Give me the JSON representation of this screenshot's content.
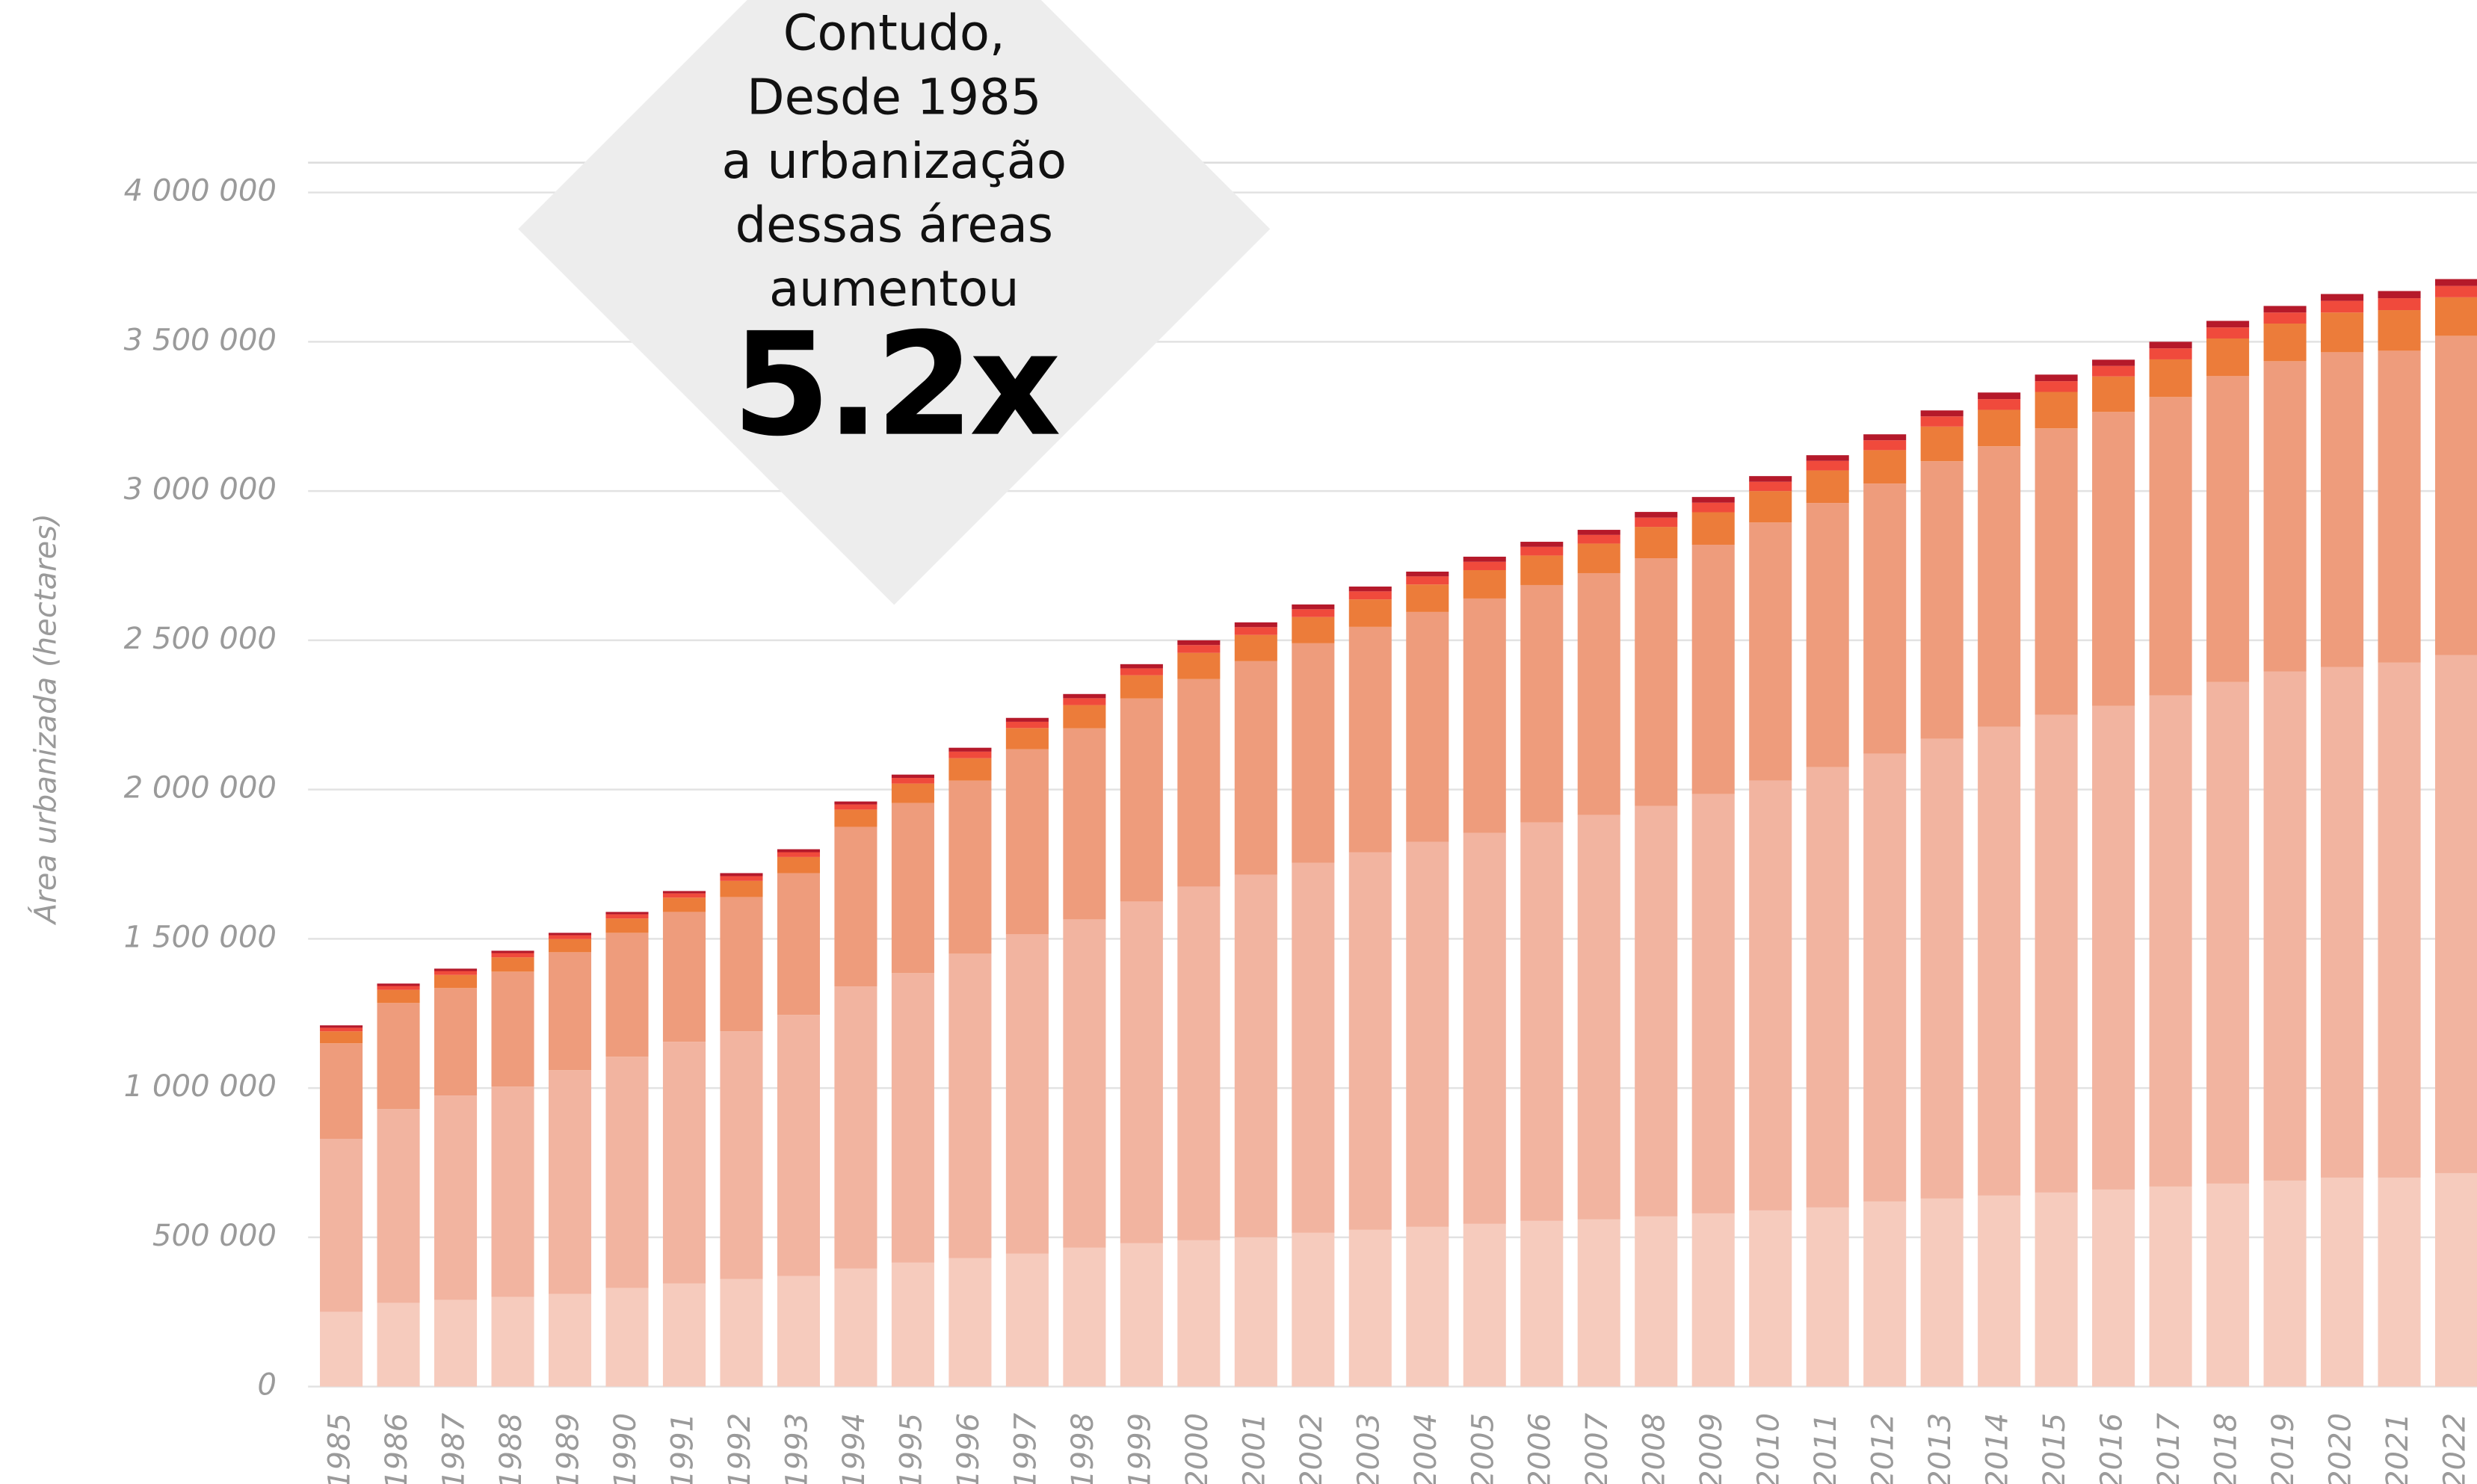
{
  "chart_data": {
    "type": "stacked_bar",
    "annotation_lines": [
      "Contudo,",
      "Desde 1985",
      "a urbanização",
      "dessas áreas",
      "aumentou"
    ],
    "annotation_value": "5.2x",
    "ylabel": "Área urbanizada (hectares)",
    "categories": [
      "1985",
      "1986",
      "1987",
      "1988",
      "1989",
      "1990",
      "1991",
      "1992",
      "1993",
      "1994",
      "1995",
      "1996",
      "1997",
      "1998",
      "1999",
      "2000",
      "2001",
      "2002",
      "2003",
      "2004",
      "2005",
      "2006",
      "2007",
      "2008",
      "2009",
      "2010",
      "2011",
      "2012",
      "2013",
      "2014",
      "2015",
      "2016",
      "2017",
      "2018",
      "2019",
      "2020",
      "2021",
      "2022"
    ],
    "series": [
      {
        "color": "#f6cbbd",
        "values": [
          250000,
          280000,
          290000,
          300000,
          310000,
          330000,
          345000,
          360000,
          370000,
          395000,
          415000,
          430000,
          445000,
          465000,
          480000,
          490000,
          500000,
          515000,
          525000,
          535000,
          545000,
          555000,
          560000,
          570000,
          580000,
          590000,
          600000,
          620000,
          630000,
          640000,
          650000,
          660000,
          670000,
          680000,
          690000,
          700000,
          700000,
          715000
        ]
      },
      {
        "color": "#f2b4a0",
        "values": [
          580000,
          650000,
          685000,
          705000,
          750000,
          775000,
          810000,
          830000,
          875000,
          945000,
          970000,
          1020000,
          1070000,
          1100000,
          1145000,
          1185000,
          1215000,
          1240000,
          1265000,
          1290000,
          1310000,
          1335000,
          1355000,
          1375000,
          1405000,
          1440000,
          1475000,
          1500000,
          1540000,
          1570000,
          1600000,
          1620000,
          1645000,
          1680000,
          1705000,
          1710000,
          1725000,
          1735000
        ]
      },
      {
        "color": "#ee9c7c",
        "values": [
          320000,
          355000,
          360000,
          385000,
          395000,
          415000,
          435000,
          450000,
          475000,
          535000,
          570000,
          580000,
          620000,
          640000,
          680000,
          695000,
          715000,
          735000,
          755000,
          770000,
          785000,
          795000,
          810000,
          830000,
          835000,
          865000,
          885000,
          905000,
          930000,
          940000,
          960000,
          985000,
          1000000,
          1025000,
          1040000,
          1055000,
          1045000,
          1070000
        ]
      },
      {
        "color": "#ec7c3a",
        "values": [
          40000,
          44000,
          44000,
          48000,
          44000,
          48000,
          48000,
          54000,
          54000,
          58000,
          65000,
          75000,
          71000,
          78000,
          78000,
          88000,
          88000,
          88000,
          92000,
          92000,
          95000,
          99000,
          99000,
          105000,
          109000,
          105000,
          109000,
          112000,
          116000,
          122000,
          122000,
          119000,
          126000,
          126000,
          126000,
          133000,
          136000,
          129000
        ]
      },
      {
        "color": "#f04a3c",
        "values": [
          12000,
          13000,
          13000,
          14000,
          13000,
          14000,
          14000,
          16000,
          16000,
          17000,
          19000,
          22000,
          21000,
          23000,
          23000,
          26000,
          26000,
          26000,
          27000,
          27000,
          28000,
          29000,
          29000,
          31000,
          32000,
          31000,
          32000,
          33000,
          34000,
          36000,
          36000,
          35000,
          37000,
          37000,
          37000,
          39000,
          40000,
          38000
        ]
      },
      {
        "color": "#b5192a",
        "values": [
          8000,
          8000,
          8000,
          8000,
          8000,
          8000,
          8000,
          10000,
          10000,
          10000,
          11000,
          13000,
          13000,
          14000,
          14000,
          16000,
          16000,
          16000,
          16000,
          16000,
          17000,
          17000,
          17000,
          19000,
          19000,
          19000,
          19000,
          20000,
          20000,
          22000,
          22000,
          21000,
          22000,
          22000,
          22000,
          23000,
          24000,
          23000
        ]
      }
    ],
    "ylim": [
      0,
      4100000
    ],
    "yticks": [
      0,
      {
        "value": 500000,
        "label": "500 000"
      },
      {
        "value": 1000000,
        "label": "1 000 000"
      },
      {
        "value": 1500000,
        "label": "1 500 000"
      },
      {
        "value": 2000000,
        "label": "2 000 000"
      },
      {
        "value": 2500000,
        "label": "2 500 000"
      },
      {
        "value": 3000000,
        "label": "3 000 000"
      },
      {
        "value": 3500000,
        "label": "3 500 000"
      },
      {
        "value": 4000000,
        "label": "4 000 000"
      }
    ],
    "grid": true
  }
}
